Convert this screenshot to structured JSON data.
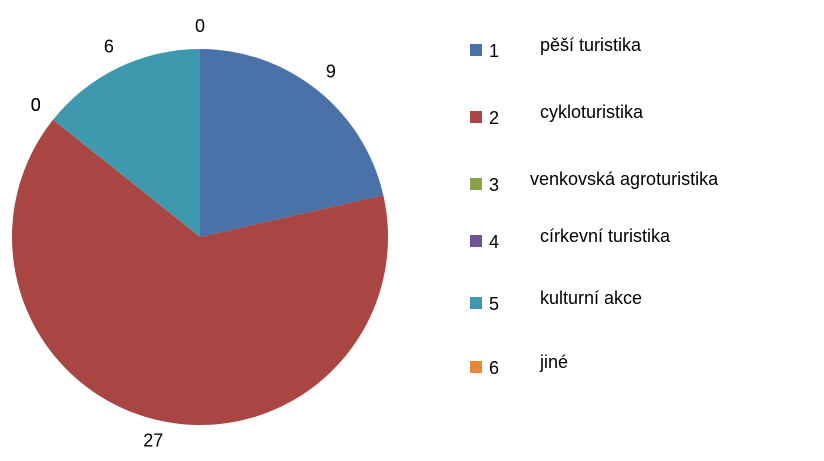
{
  "chart_data": {
    "type": "pie",
    "categories": [
      "1",
      "2",
      "3",
      "4",
      "5",
      "6"
    ],
    "category_names": [
      "pěší turistika",
      "cykloturistika",
      "venkovská agroturistika",
      "církevní turistika",
      "kulturní akce",
      "jiné"
    ],
    "values": [
      9,
      27,
      0,
      0,
      6,
      0
    ],
    "colors": [
      "#4a72a8",
      "#a94643",
      "#88a44a",
      "#6f5394",
      "#3f99ae",
      "#e6883a"
    ]
  }
}
